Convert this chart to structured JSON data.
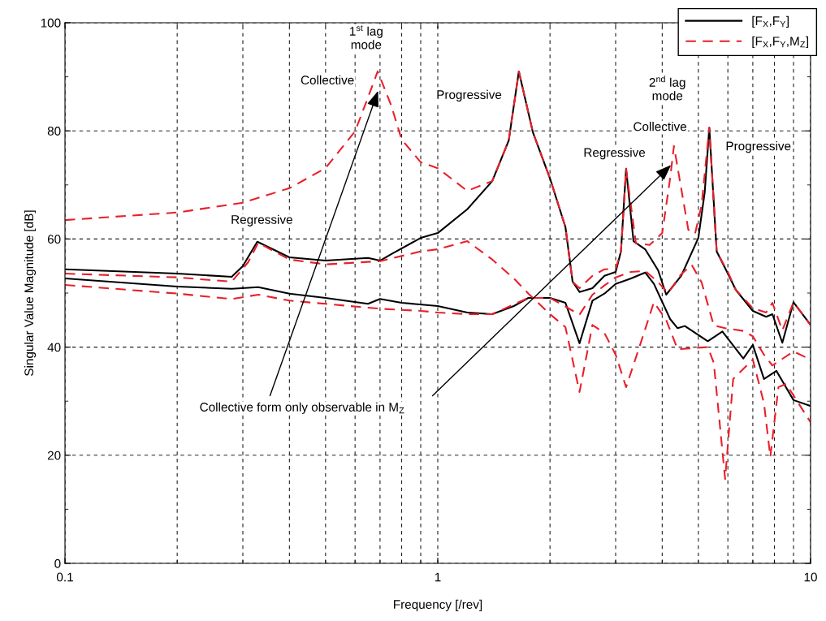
{
  "chart_data": {
    "type": "line",
    "xlabel": "Frequency [/rev]",
    "ylabel": "Singular Value Magnitude [dB]",
    "log": "x",
    "xlim": [
      0.1,
      10
    ],
    "ylim": [
      0,
      100
    ],
    "xticks": [
      0.1,
      {
        "value": 0.2,
        "label": null
      },
      {
        "value": 0.3,
        "label": null
      },
      {
        "value": 0.4,
        "label": null
      },
      {
        "value": 0.5,
        "label": null
      },
      {
        "value": 0.6,
        "label": null
      },
      {
        "value": 0.7,
        "label": null
      },
      {
        "value": 0.8,
        "label": null
      },
      {
        "value": 0.9,
        "label": null
      },
      1,
      {
        "value": 2,
        "label": null
      },
      {
        "value": 3,
        "label": null
      },
      {
        "value": 4,
        "label": null
      },
      {
        "value": 5,
        "label": null
      },
      {
        "value": 6,
        "label": null
      },
      {
        "value": 7,
        "label": null
      },
      {
        "value": 8,
        "label": null
      },
      {
        "value": 9,
        "label": null
      },
      10
    ],
    "yticks": [
      0,
      {
        "value": 10,
        "label": null
      },
      20,
      {
        "value": 30,
        "label": null
      },
      40,
      {
        "value": 50,
        "label": null
      },
      60,
      {
        "value": 70,
        "label": null
      },
      80,
      {
        "value": 90,
        "label": null
      },
      100
    ],
    "grid": true,
    "legend": "top right",
    "marker": "none",
    "series": [
      {
        "name": "[F$_{X}$,F$_{Y}$]",
        "color": "#000000",
        "line_style": "solid",
        "x": [
          0.1,
          0.2,
          0.28,
          0.3,
          0.328,
          0.4,
          0.5,
          0.65,
          0.7,
          0.75,
          0.9,
          1.0,
          1.2,
          1.4,
          1.55,
          1.65,
          1.8,
          2.0,
          2.2,
          2.3,
          2.4,
          2.6,
          2.8,
          3.0,
          3.1,
          3.2,
          3.35,
          3.6,
          3.9,
          4.1,
          4.5,
          5.0,
          5.2,
          5.35,
          5.6,
          6.0,
          6.3,
          7.0,
          7.6,
          7.9,
          8.4,
          9.0,
          10
        ],
        "values": [
          54.4,
          53.6,
          53.0,
          55.0,
          59.5,
          56.6,
          56.0,
          56.5,
          56.0,
          57.2,
          60.2,
          61.1,
          65.5,
          70.7,
          78.2,
          91.0,
          79.7,
          71.2,
          62.2,
          52.1,
          50.2,
          50.9,
          53.2,
          53.9,
          57.7,
          73.0,
          59.6,
          58.1,
          54.2,
          49.7,
          53.2,
          60.2,
          68.6,
          80.6,
          57.7,
          53.6,
          50.6,
          46.7,
          45.6,
          46.1,
          40.8,
          48.3,
          44.1
        ]
      },
      {
        "color": "#000000",
        "line_style": "solid",
        "x": [
          0.1,
          0.2,
          0.28,
          0.33,
          0.4,
          0.5,
          0.65,
          0.7,
          0.8,
          1.0,
          1.2,
          1.4,
          1.6,
          1.75,
          2.0,
          2.2,
          2.4,
          2.6,
          2.8,
          3.0,
          3.3,
          3.6,
          3.8,
          4.2,
          4.4,
          4.6,
          5.3,
          5.8,
          6.6,
          7.0,
          7.5,
          8.1,
          9.0,
          10
        ],
        "values": [
          52.7,
          51.2,
          50.8,
          51.1,
          49.9,
          49.1,
          48.0,
          48.9,
          48.2,
          47.6,
          46.4,
          46.1,
          47.6,
          49.1,
          49.1,
          48.2,
          40.7,
          48.6,
          49.9,
          51.7,
          52.7,
          53.8,
          51.7,
          45.2,
          43.5,
          43.9,
          41.1,
          42.9,
          37.9,
          40.4,
          34.1,
          35.6,
          30.2,
          29.1
        ]
      },
      {
        "name": "[F$_{X}$,F$_{Y}$,M$_{Z}$]",
        "color": "#e8202a",
        "line_style": "dashed",
        "x": [
          0.1,
          0.2,
          0.3,
          0.4,
          0.5,
          0.6,
          0.65,
          0.69,
          0.75,
          0.8,
          0.9,
          1.0,
          1.2,
          1.4,
          1.55,
          1.65,
          1.8,
          2.0,
          2.2,
          2.3,
          2.4,
          2.6,
          2.8,
          3.0,
          3.1,
          3.2,
          3.4,
          3.7,
          4.0,
          4.2,
          4.3,
          4.45,
          4.7,
          4.9,
          5.1,
          5.35,
          5.6,
          6.0,
          6.3,
          7.0,
          7.6,
          7.9,
          8.4,
          9.0,
          10
        ],
        "values": [
          63.5,
          64.9,
          66.7,
          69.4,
          73.1,
          79.9,
          86.2,
          91.0,
          84.7,
          78.4,
          74.2,
          73.1,
          68.9,
          70.7,
          78.2,
          91.0,
          79.7,
          71.2,
          62.2,
          52.1,
          50.9,
          53.2,
          54.4,
          54.5,
          57.7,
          73.0,
          59.2,
          58.9,
          61.1,
          71.2,
          77.2,
          71.2,
          61.7,
          61.0,
          66.2,
          80.6,
          57.7,
          53.9,
          50.6,
          47.2,
          46.4,
          48.2,
          43.1,
          48.3,
          44.1
        ]
      },
      {
        "color": "#e8202a",
        "line_style": "dashed",
        "x": [
          0.1,
          0.2,
          0.28,
          0.31,
          0.33,
          0.4,
          0.5,
          0.7,
          0.9,
          1.0,
          1.2,
          1.4,
          1.6,
          1.75,
          2.0,
          2.2,
          2.4,
          2.6,
          2.8,
          3.0,
          3.2,
          3.5,
          3.8,
          4.1,
          4.4,
          5.3,
          5.5,
          5.9,
          6.2,
          7.0,
          7.5,
          7.8,
          8.2,
          8.6,
          10
        ],
        "values": [
          53.6,
          52.9,
          52.1,
          55.7,
          59.3,
          56.2,
          55.3,
          55.9,
          57.7,
          58.1,
          59.6,
          56.2,
          52.7,
          49.9,
          46.1,
          43.7,
          31.7,
          44.1,
          42.6,
          38.6,
          32.6,
          40.7,
          48.3,
          45.0,
          39.6,
          40.0,
          37.1,
          15.6,
          34.1,
          37.7,
          29.6,
          19.7,
          32.6,
          33.2,
          26.1
        ]
      },
      {
        "color": "#e8202a",
        "line_style": "dashed",
        "x": [
          0.1,
          0.2,
          0.28,
          0.33,
          0.4,
          0.5,
          0.7,
          0.9,
          1.0,
          1.2,
          1.4,
          1.6,
          1.75,
          2.0,
          2.2,
          2.4,
          2.6,
          2.8,
          3.0,
          3.3,
          3.6,
          3.9,
          4.15,
          4.5,
          4.8,
          5.1,
          5.5,
          5.9,
          6.6,
          7.0,
          7.5,
          7.9,
          9.0,
          10
        ],
        "values": [
          51.5,
          49.9,
          48.9,
          49.7,
          48.6,
          48.0,
          47.1,
          46.7,
          46.4,
          46.1,
          46.1,
          47.9,
          49.1,
          49.1,
          47.5,
          46.0,
          49.7,
          51.4,
          52.9,
          53.9,
          54.1,
          52.0,
          50.0,
          53.5,
          55.2,
          52.0,
          44.0,
          43.5,
          43.0,
          42.0,
          38.6,
          36.6,
          39.2,
          37.7
        ]
      }
    ],
    "annotations": [
      "Regressive",
      "Collective",
      "1$^{st}$ lag\nmode",
      "Progressive",
      "2$^{nd}$ lag\nmode",
      "Collective",
      "Regressive",
      "Progressive",
      "Collective form only observable in M$_{Z}$"
    ]
  }
}
